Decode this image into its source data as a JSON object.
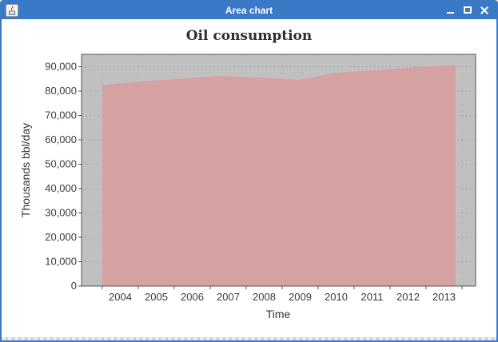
{
  "window": {
    "title": "Area chart",
    "icon": "java-coffee-cup-icon",
    "controls": [
      {
        "name": "minimize"
      },
      {
        "name": "maximize"
      },
      {
        "name": "close"
      }
    ]
  },
  "chart_data": {
    "type": "area",
    "title": "Oil consumption",
    "xlabel": "Time",
    "ylabel": "Thousands bbl/day",
    "x": [
      2004,
      2005,
      2006,
      2007,
      2008,
      2009,
      2010,
      2011,
      2012,
      2013
    ],
    "xtick_labels": [
      "2004",
      "2005",
      "2006",
      "2007",
      "2008",
      "2009",
      "2010",
      "2011",
      "2012",
      "2013"
    ],
    "series": [
      {
        "name": "Oil consumption",
        "values": [
          82502,
          84026,
          85007,
          86216,
          85559,
          84491,
          87672,
          88575,
          89837,
          90701
        ]
      }
    ],
    "ylim": [
      0,
      95000
    ],
    "yticks": [
      0,
      10000,
      20000,
      30000,
      40000,
      50000,
      60000,
      70000,
      80000,
      90000
    ],
    "ytick_labels": [
      "0",
      "10,000",
      "20,000",
      "30,000",
      "40,000",
      "50,000",
      "60,000",
      "70,000",
      "80,000",
      "90,000"
    ],
    "grid": true,
    "legend": "none",
    "area_color": "#d5a1a1",
    "plot_bg_color": "#c0c0c0",
    "plot_border_color": "#565656",
    "gridline_color": "#8a8a8a"
  }
}
